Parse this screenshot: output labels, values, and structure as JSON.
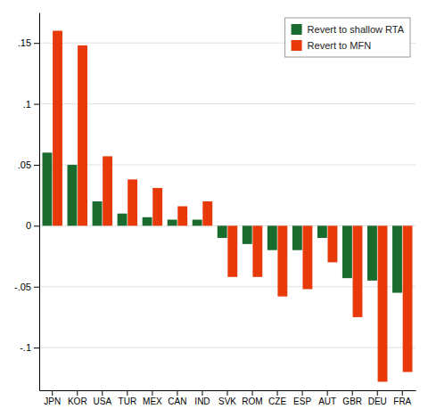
{
  "chart_data": {
    "type": "bar",
    "categories": [
      "JPN",
      "KOR",
      "USA",
      "TUR",
      "MEX",
      "CAN",
      "IND",
      "SVK",
      "ROM",
      "CZE",
      "ESP",
      "AUT",
      "GBR",
      "DEU",
      "FRA"
    ],
    "series": [
      {
        "name": "Revert to shallow RTA",
        "color": "#1a6b2e",
        "values": [
          0.06,
          0.05,
          0.02,
          0.01,
          0.007,
          0.005,
          0.005,
          -0.01,
          -0.015,
          -0.02,
          -0.02,
          -0.01,
          -0.043,
          -0.045,
          -0.055
        ]
      },
      {
        "name": "Revert to MFN",
        "color": "#e8390a",
        "values": [
          0.16,
          0.148,
          0.057,
          0.038,
          0.031,
          0.016,
          0.02,
          -0.042,
          -0.042,
          -0.058,
          -0.052,
          -0.03,
          -0.075,
          -0.128,
          -0.12
        ]
      }
    ],
    "ylim": [
      -0.135,
      0.175
    ],
    "yticks": [
      {
        "value": -0.1,
        "label": "-.1"
      },
      {
        "value": -0.05,
        "label": "-.05"
      },
      0,
      {
        "value": 0.05,
        "label": ".05"
      },
      {
        "value": 0.1,
        "label": ".1"
      },
      {
        "value": 0.15,
        "label": ".15"
      }
    ],
    "grid": true,
    "legend": "upper right"
  }
}
